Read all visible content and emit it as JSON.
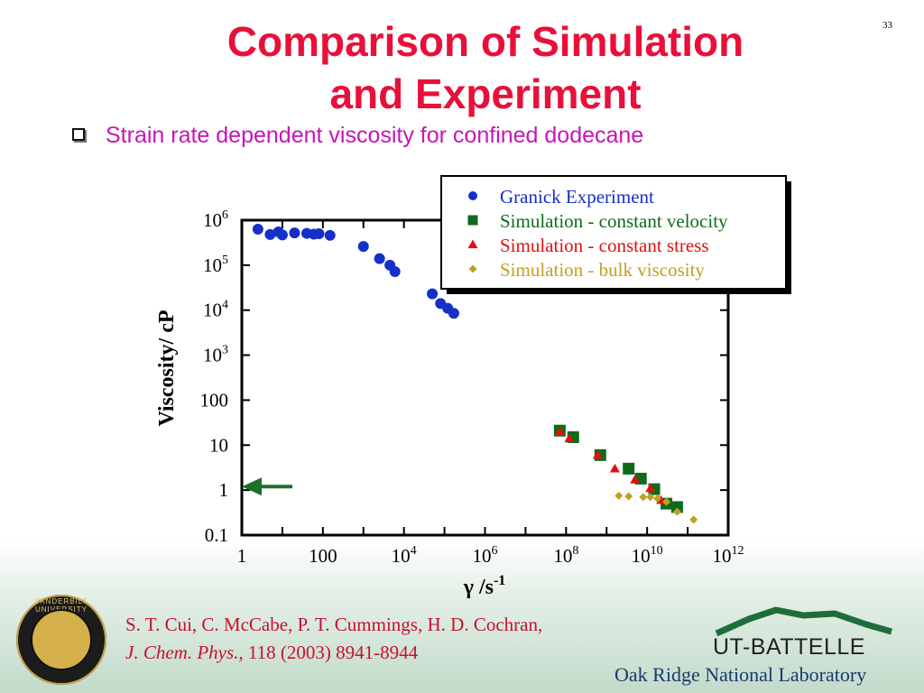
{
  "slide": {
    "title_line1": "Comparison of Simulation",
    "title_line2": "and Experiment",
    "page_number": "33",
    "bullet": "Strain rate dependent viscosity for confined dodecane"
  },
  "chart_data": {
    "type": "scatter",
    "xscale": "log",
    "yscale": "log",
    "xlim": [
      1,
      1000000000000
    ],
    "ylim": [
      0.1,
      1000000
    ],
    "xlabel": "γ /s",
    "xlabel_sup": "-1",
    "ylabel": "Viscosity/ cP",
    "xticks": [
      {
        "base": "1",
        "exp": ""
      },
      {
        "base": "100",
        "exp": ""
      },
      {
        "base": "10",
        "exp": "4"
      },
      {
        "base": "10",
        "exp": "6"
      },
      {
        "base": "10",
        "exp": "8"
      },
      {
        "base": "10",
        "exp": "10"
      },
      {
        "base": "10",
        "exp": "12"
      }
    ],
    "yticks": [
      {
        "base": "0.1",
        "exp": ""
      },
      {
        "base": "1",
        "exp": ""
      },
      {
        "base": "10",
        "exp": ""
      },
      {
        "base": "100",
        "exp": ""
      },
      {
        "base": "10",
        "exp": "3"
      },
      {
        "base": "10",
        "exp": "4"
      },
      {
        "base": "10",
        "exp": "5"
      },
      {
        "base": "10",
        "exp": "6"
      }
    ],
    "legend_position": "top-right",
    "series": [
      {
        "name": "Granick Experiment",
        "marker": "circle",
        "color": "#1530c8",
        "points": [
          [
            2.5,
            630000
          ],
          [
            5,
            480000
          ],
          [
            8,
            550000
          ],
          [
            10,
            470000
          ],
          [
            20,
            520000
          ],
          [
            40,
            510000
          ],
          [
            60,
            490000
          ],
          [
            80,
            500000
          ],
          [
            150,
            460000
          ],
          [
            1000,
            260000
          ],
          [
            2500,
            140000
          ],
          [
            4500,
            100000
          ],
          [
            6000,
            72000
          ],
          [
            50000,
            23000
          ],
          [
            80000,
            14000
          ],
          [
            120000,
            11000
          ],
          [
            170000,
            8500
          ]
        ]
      },
      {
        "name": "Simulation - constant velocity",
        "marker": "square",
        "color": "#106a1e",
        "points": [
          [
            70000000,
            21
          ],
          [
            150000000,
            15
          ],
          [
            700000000,
            6
          ],
          [
            3500000000,
            3
          ],
          [
            7000000000,
            1.8
          ],
          [
            15000000000,
            1.05
          ],
          [
            30000000000,
            0.5
          ],
          [
            55000000000,
            0.42
          ]
        ]
      },
      {
        "name": "Simulation - constant stress",
        "marker": "triangle",
        "color": "#e01010",
        "points": [
          [
            70000000,
            20
          ],
          [
            120000000,
            14
          ],
          [
            600000000,
            6
          ],
          [
            1600000000,
            3
          ],
          [
            5000000000,
            1.7
          ],
          [
            12000000000,
            1.1
          ],
          [
            22000000000,
            0.6
          ]
        ]
      },
      {
        "name": "Simulation - bulk viscosity",
        "marker": "diamond",
        "color": "#c0a020",
        "points": [
          [
            2000000000,
            0.75
          ],
          [
            3500000000,
            0.73
          ],
          [
            8000000000,
            0.7
          ],
          [
            12000000000,
            0.7
          ],
          [
            18000000000,
            0.65
          ],
          [
            30000000000,
            0.55
          ],
          [
            55000000000,
            0.33
          ],
          [
            140000000000,
            0.22
          ]
        ]
      }
    ],
    "arrow_annotation": {
      "y": 1.2,
      "color": "#1f6e2a",
      "direction": "left"
    }
  },
  "reference": {
    "line1": "S. T. Cui, C. McCabe, P. T. Cummings, H. D. Cochran,",
    "journal": "J. Chem. Phys.,",
    "rest": " 118 (2003) 8941-8944"
  },
  "logos": {
    "university": "VANDERBILT UNIVERSITY",
    "ut_battelle": "UT-BATTELLE",
    "ornl": "Oak Ridge National Laboratory"
  }
}
